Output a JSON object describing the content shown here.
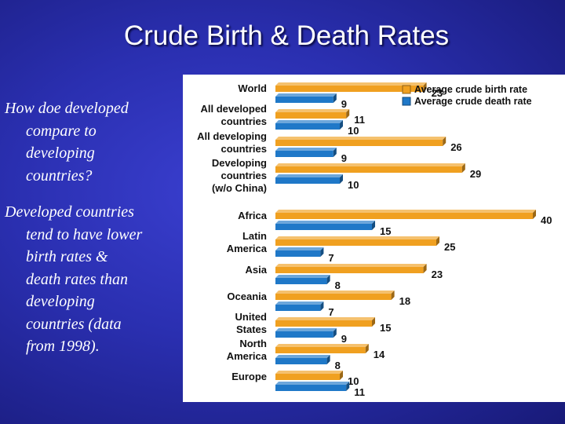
{
  "slide": {
    "title": "Crude Birth & Death Rates",
    "question_lines": [
      "How doe developed",
      "compare to",
      "developing",
      "countries?"
    ],
    "answer_lines": [
      "Developed countries",
      "tend to have lower",
      "birth rates &",
      "death rates than",
      "developing",
      "countries (data",
      "from 1998)."
    ]
  },
  "chart_data": {
    "type": "bar",
    "orientation": "horizontal",
    "title": "",
    "xlabel": "",
    "ylabel": "",
    "xlim": [
      0,
      40
    ],
    "grid": false,
    "legend_position": "top-right",
    "categories": [
      [
        "World"
      ],
      [
        "All developed",
        "countries"
      ],
      [
        "All developing",
        "countries"
      ],
      [
        "Developing",
        "countries",
        "(w/o China)"
      ],
      [
        "Africa"
      ],
      [
        "Latin",
        "America"
      ],
      [
        "Asia"
      ],
      [
        "Oceania"
      ],
      [
        "United",
        "States"
      ],
      [
        "North",
        "America"
      ],
      [
        "Europe"
      ]
    ],
    "series": [
      {
        "name": "Average crude birth rate",
        "color": "#f0a020",
        "values": [
          23,
          11,
          26,
          29,
          40,
          25,
          23,
          18,
          15,
          14,
          10
        ]
      },
      {
        "name": "Average crude death rate",
        "color": "#1f78c8",
        "values": [
          9,
          10,
          9,
          10,
          15,
          7,
          8,
          7,
          9,
          8,
          11
        ]
      }
    ]
  }
}
